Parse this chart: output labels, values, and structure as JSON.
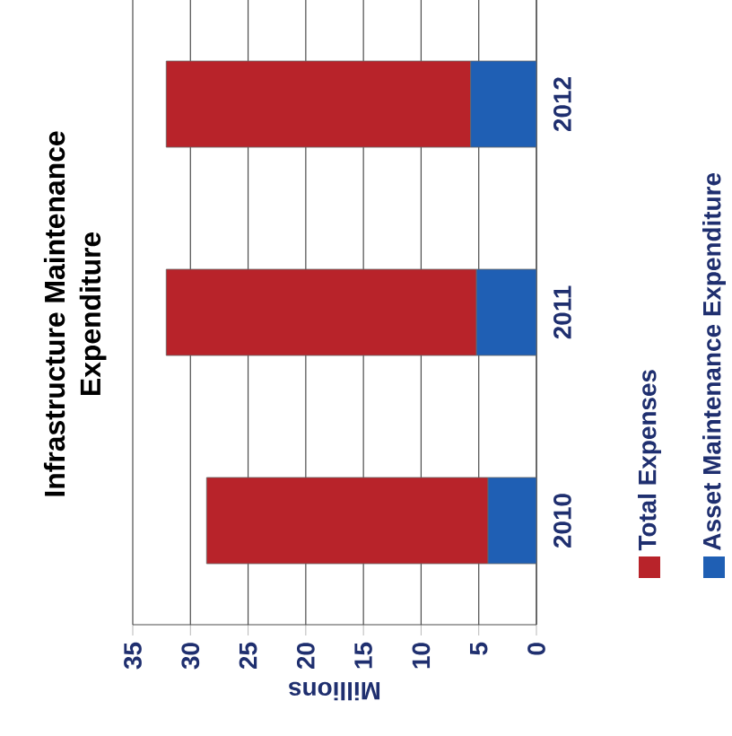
{
  "chart_data": {
    "type": "bar",
    "stacked": true,
    "orientation": "horizontal",
    "title": "Infrastructure Maintenance Expenditure",
    "xlabel": "Millions",
    "categories": [
      "2012",
      "2011",
      "2010"
    ],
    "series": [
      {
        "name": "Asset Maintenance Expenditure",
        "color": "#1f5fb4",
        "values": [
          5.7,
          5.2,
          4.2
        ]
      },
      {
        "name": "Total Expenses",
        "color": "#b8232a",
        "values": [
          26.4,
          26.9,
          24.4
        ]
      }
    ],
    "xlim": [
      35,
      0
    ],
    "xticks": [
      0,
      5,
      10,
      15,
      20,
      25,
      30,
      35
    ],
    "grid": "x",
    "legend": "right"
  }
}
